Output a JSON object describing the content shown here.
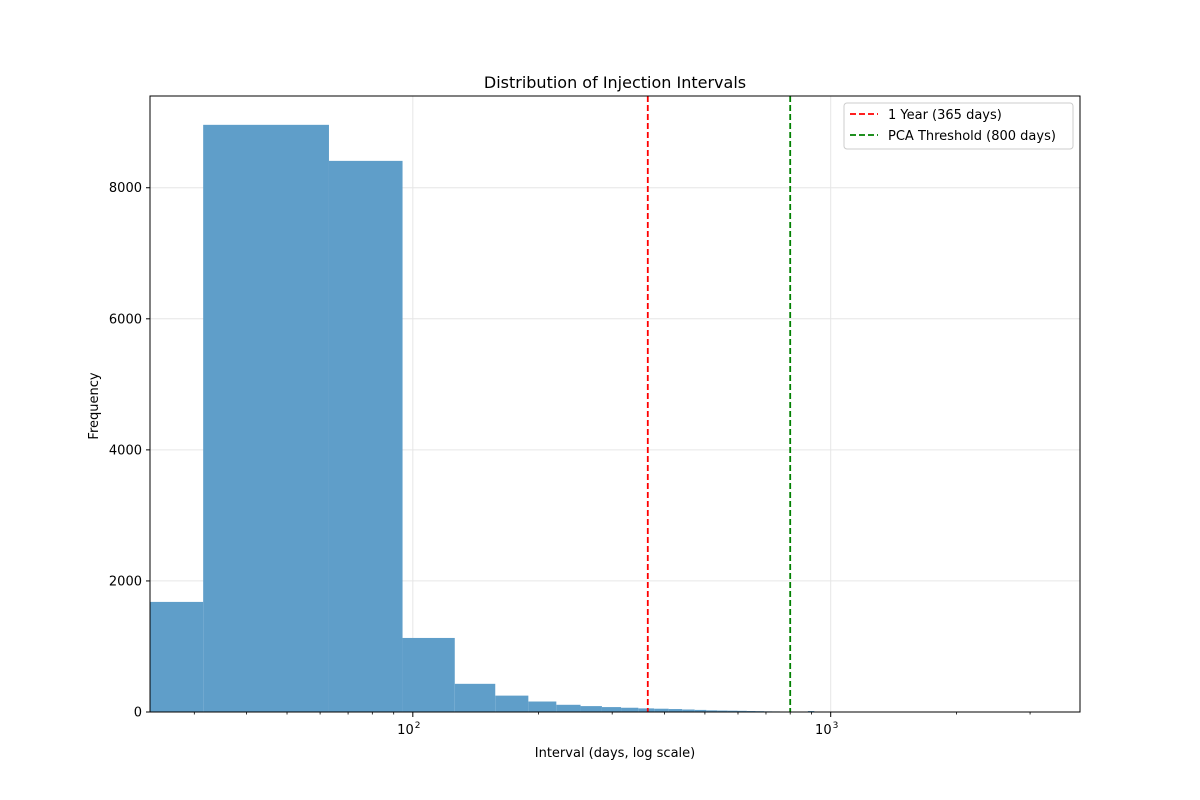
{
  "chart_data": {
    "type": "bar",
    "title": "Distribution of Injection Intervals",
    "xlabel": "Interval (days, log scale)",
    "ylabel": "Frequency",
    "xscale": "log",
    "xlim": [
      23.5,
      3950
    ],
    "ylim": [
      0,
      9400
    ],
    "grid": true,
    "legend_position": "top-right",
    "bar_color": "#5f9ec9",
    "x_ticks": [
      {
        "value": 100,
        "base": "10",
        "exp": "2"
      },
      {
        "value": 1000,
        "base": "10",
        "exp": "3"
      }
    ],
    "y_ticks": [
      0,
      2000,
      4000,
      6000,
      8000
    ],
    "bins": [
      {
        "x0": 23.5,
        "x1": 31.5,
        "count": 1680
      },
      {
        "x0": 31.5,
        "x1": 63,
        "count": 8960
      },
      {
        "x0": 63,
        "x1": 94.5,
        "count": 8410
      },
      {
        "x0": 94.5,
        "x1": 126,
        "count": 1130
      },
      {
        "x0": 126,
        "x1": 157.5,
        "count": 430
      },
      {
        "x0": 157.5,
        "x1": 189,
        "count": 250
      },
      {
        "x0": 189,
        "x1": 220.5,
        "count": 160
      },
      {
        "x0": 220.5,
        "x1": 252,
        "count": 110
      },
      {
        "x0": 252,
        "x1": 283.5,
        "count": 90
      },
      {
        "x0": 283.5,
        "x1": 315,
        "count": 75
      },
      {
        "x0": 315,
        "x1": 346.5,
        "count": 65
      },
      {
        "x0": 346.5,
        "x1": 378,
        "count": 55
      },
      {
        "x0": 378,
        "x1": 409.5,
        "count": 50
      },
      {
        "x0": 409.5,
        "x1": 441,
        "count": 45
      },
      {
        "x0": 441,
        "x1": 472.5,
        "count": 38
      },
      {
        "x0": 472.5,
        "x1": 504,
        "count": 32
      },
      {
        "x0": 504,
        "x1": 535.5,
        "count": 25
      },
      {
        "x0": 535.5,
        "x1": 567,
        "count": 22
      },
      {
        "x0": 567,
        "x1": 598.5,
        "count": 20
      },
      {
        "x0": 598.5,
        "x1": 630,
        "count": 18
      },
      {
        "x0": 630,
        "x1": 661.5,
        "count": 15
      },
      {
        "x0": 661.5,
        "x1": 693,
        "count": 13
      },
      {
        "x0": 693,
        "x1": 724.5,
        "count": 10
      },
      {
        "x0": 724.5,
        "x1": 756,
        "count": 9
      },
      {
        "x0": 756,
        "x1": 787.5,
        "count": 7
      },
      {
        "x0": 787.5,
        "x1": 819,
        "count": 6
      },
      {
        "x0": 819,
        "x1": 850.5,
        "count": 4
      },
      {
        "x0": 850.5,
        "x1": 882,
        "count": 3
      },
      {
        "x0": 882,
        "x1": 913.5,
        "count": 15
      },
      {
        "x0": 913.5,
        "x1": 945,
        "count": 2
      }
    ],
    "reference_lines": [
      {
        "x": 365,
        "label": "1 Year (365 days)",
        "color": "#ff0000"
      },
      {
        "x": 800,
        "label": "PCA Threshold (800 days)",
        "color": "#008000"
      }
    ]
  }
}
